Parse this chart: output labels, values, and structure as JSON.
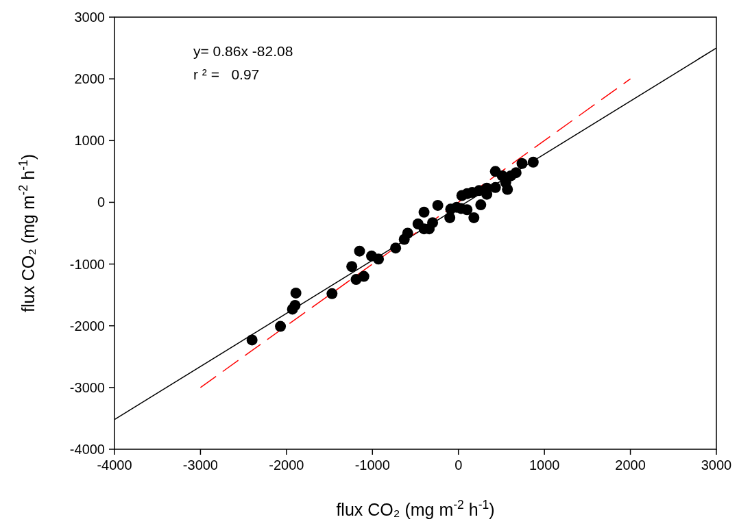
{
  "chart_data": {
    "type": "scatter",
    "xlabel": "flux CO₂ (mg m$^{-2}$ h$^{-1}$)",
    "ylabel": "flux CO₂ (mg m$^{-2}$ h$^{-1}$)",
    "annotations": [
      "y= 0.86x -82.08",
      "r ² =   0.97"
    ],
    "xlim": [
      -4000,
      3000
    ],
    "xticks": [
      -4000,
      -3000,
      -2000,
      -1000,
      0,
      1000,
      2000,
      3000
    ],
    "ylim": [
      -4000,
      3000
    ],
    "yticks": [
      -4000,
      -3000,
      -2000,
      -1000,
      0,
      1000,
      2000,
      3000
    ],
    "grid": false,
    "series": [
      {
        "type": "line",
        "color": "#000000",
        "line_style": "solid",
        "marker": "none",
        "x": [
          -4000,
          3000
        ],
        "values": [
          -3520,
          2500
        ]
      },
      {
        "type": "line",
        "color": "#ff0000",
        "line_style": "dashed",
        "marker": "none",
        "x": [
          -3000,
          2000
        ],
        "values": [
          -3000,
          2000
        ]
      },
      {
        "color": "#000000",
        "marker": "circle",
        "x": [
          -2400,
          -2070,
          -1930,
          -1900,
          -1890,
          -1470,
          -1240,
          -1190,
          -1150,
          -1100,
          -1010,
          -930,
          -730,
          -630,
          -590,
          -470,
          -400,
          -400,
          -340,
          -300,
          -240,
          -100,
          -90,
          -20,
          30,
          40,
          100,
          100,
          180,
          160,
          240,
          260,
          330,
          330,
          430,
          430,
          510,
          550,
          570,
          610,
          670,
          740,
          870
        ],
        "values": [
          -2230,
          -2010,
          -1730,
          -1670,
          -1470,
          -1480,
          -1040,
          -1250,
          -790,
          -1200,
          -870,
          -920,
          -740,
          -600,
          -500,
          -350,
          -160,
          -430,
          -430,
          -330,
          -50,
          -250,
          -110,
          -80,
          -100,
          110,
          140,
          -120,
          -250,
          160,
          190,
          -40,
          130,
          230,
          500,
          240,
          430,
          320,
          210,
          430,
          480,
          630,
          650
        ]
      }
    ]
  }
}
